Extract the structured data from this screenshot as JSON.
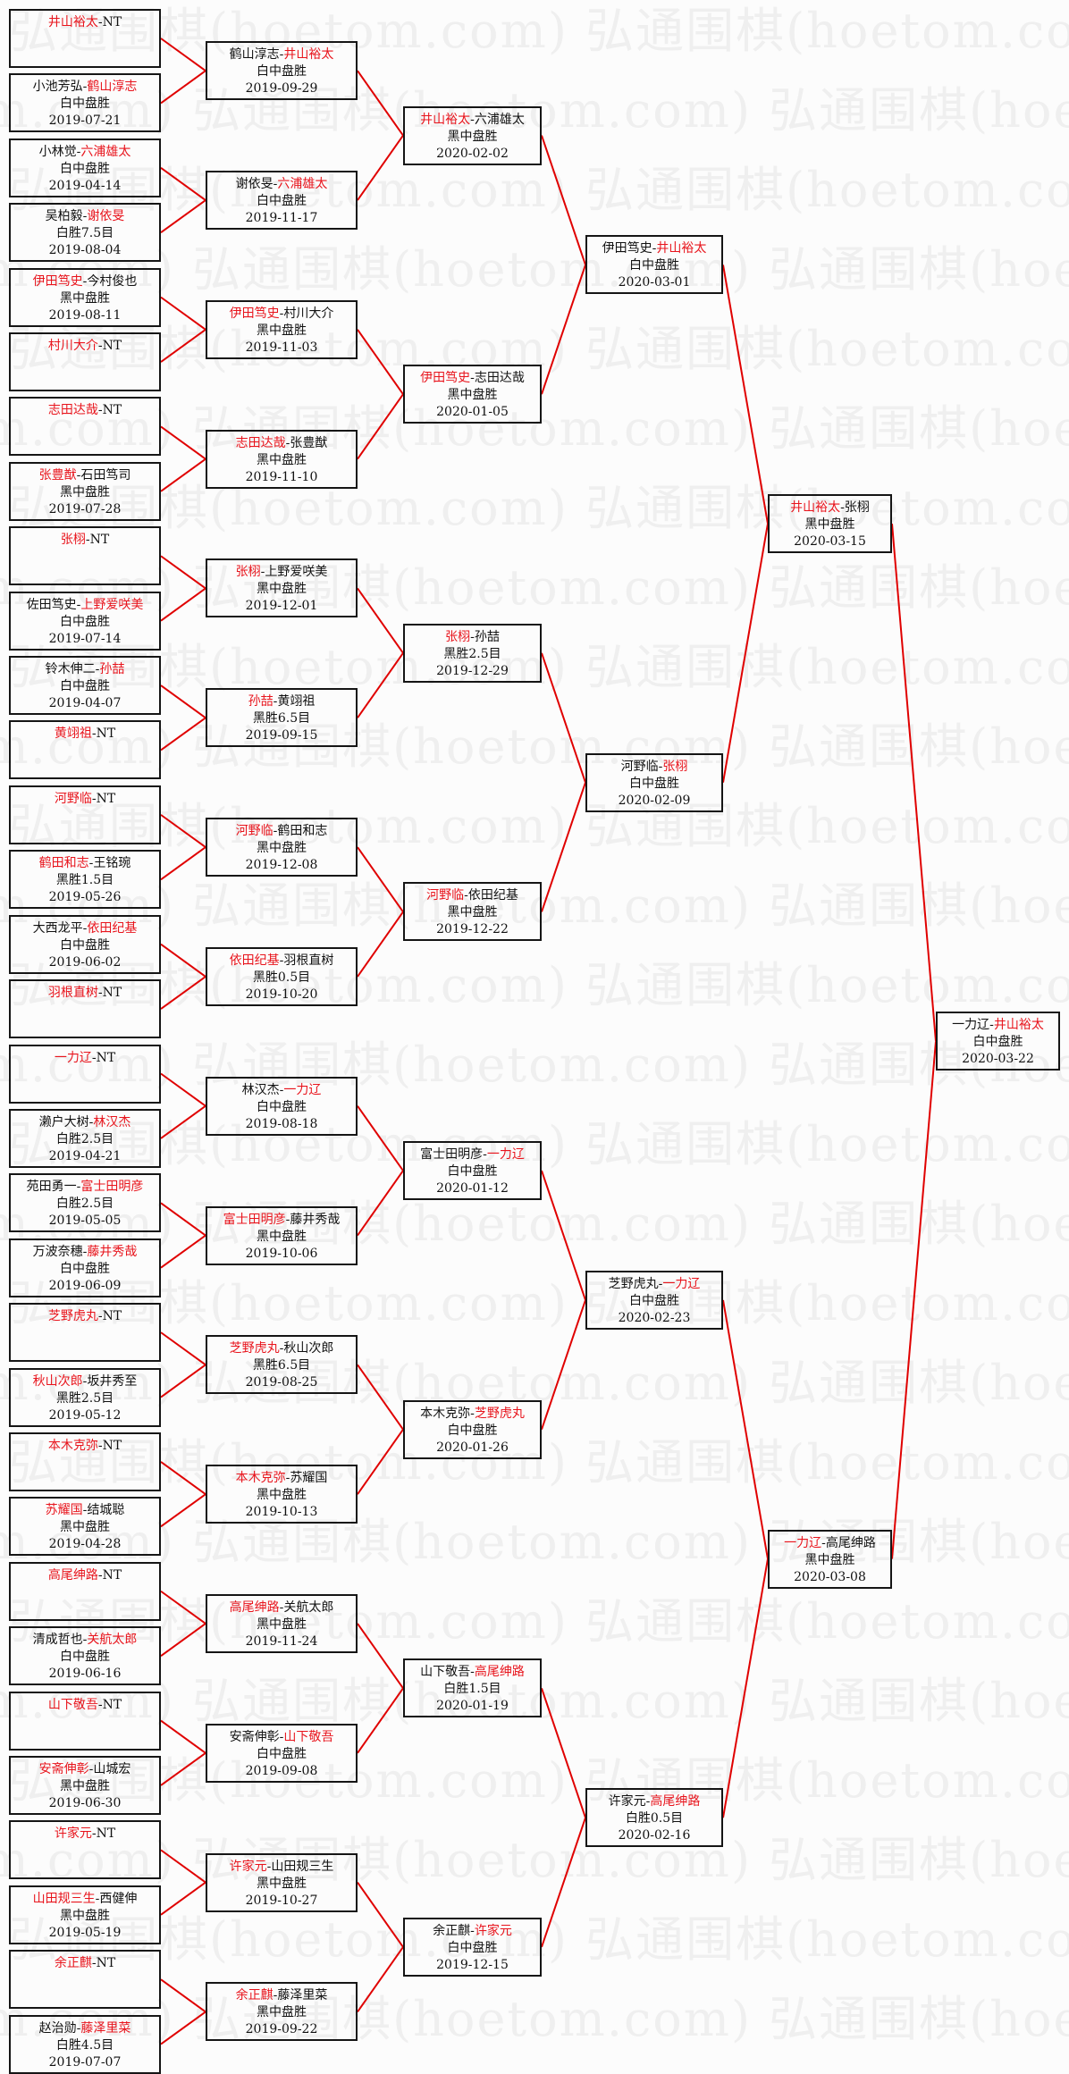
{
  "watermark": "弘通围棋(hoetom.com)",
  "colors": {
    "winner": "#e8141c",
    "connector": "#e00000",
    "border": "#151515"
  },
  "rounds": [
    [
      {
        "p1": "井山裕太",
        "p2": "NT",
        "winner": 0,
        "result": "",
        "date": ""
      },
      {
        "p1": "小池芳弘",
        "p2": "鹤山淳志",
        "winner": 1,
        "result": "白中盘胜",
        "date": "2019-07-21"
      },
      {
        "p1": "小林觉",
        "p2": "六浦雄太",
        "winner": 1,
        "result": "白中盘胜",
        "date": "2019-04-14"
      },
      {
        "p1": "吴柏毅",
        "p2": "谢依旻",
        "winner": 1,
        "result": "白胜7.5目",
        "date": "2019-08-04"
      },
      {
        "p1": "伊田笃史",
        "p2": "今村俊也",
        "winner": 0,
        "result": "黑中盘胜",
        "date": "2019-08-11"
      },
      {
        "p1": "村川大介",
        "p2": "NT",
        "winner": 0,
        "result": "",
        "date": ""
      },
      {
        "p1": "志田达哉",
        "p2": "NT",
        "winner": 0,
        "result": "",
        "date": ""
      },
      {
        "p1": "张豊猷",
        "p2": "石田笃司",
        "winner": 0,
        "result": "黑中盘胜",
        "date": "2019-07-28"
      },
      {
        "p1": "张栩",
        "p2": "NT",
        "winner": 0,
        "result": "",
        "date": ""
      },
      {
        "p1": "佐田笃史",
        "p2": "上野爱咲美",
        "winner": 1,
        "result": "白中盘胜",
        "date": "2019-07-14"
      },
      {
        "p1": "铃木伸二",
        "p2": "孙喆",
        "winner": 1,
        "result": "白中盘胜",
        "date": "2019-04-07"
      },
      {
        "p1": "黄翊祖",
        "p2": "NT",
        "winner": 0,
        "result": "",
        "date": ""
      },
      {
        "p1": "河野临",
        "p2": "NT",
        "winner": 0,
        "result": "",
        "date": ""
      },
      {
        "p1": "鹤田和志",
        "p2": "王铭琬",
        "winner": 0,
        "result": "黑胜1.5目",
        "date": "2019-05-26"
      },
      {
        "p1": "大西龙平",
        "p2": "依田纪基",
        "winner": 1,
        "result": "白中盘胜",
        "date": "2019-06-02"
      },
      {
        "p1": "羽根直树",
        "p2": "NT",
        "winner": 0,
        "result": "",
        "date": ""
      },
      {
        "p1": "一力辽",
        "p2": "NT",
        "winner": 0,
        "result": "",
        "date": ""
      },
      {
        "p1": "濑户大树",
        "p2": "林汉杰",
        "winner": 1,
        "result": "白胜2.5目",
        "date": "2019-04-21"
      },
      {
        "p1": "苑田勇一",
        "p2": "富士田明彦",
        "winner": 1,
        "result": "白胜2.5目",
        "date": "2019-05-05"
      },
      {
        "p1": "万波奈穗",
        "p2": "藤井秀哉",
        "winner": 1,
        "result": "白中盘胜",
        "date": "2019-06-09"
      },
      {
        "p1": "芝野虎丸",
        "p2": "NT",
        "winner": 0,
        "result": "",
        "date": ""
      },
      {
        "p1": "秋山次郎",
        "p2": "坂井秀至",
        "winner": 0,
        "result": "黑胜2.5目",
        "date": "2019-05-12"
      },
      {
        "p1": "本木克弥",
        "p2": "NT",
        "winner": 0,
        "result": "",
        "date": ""
      },
      {
        "p1": "苏耀国",
        "p2": "结城聪",
        "winner": 0,
        "result": "黑中盘胜",
        "date": "2019-04-28"
      },
      {
        "p1": "高尾绅路",
        "p2": "NT",
        "winner": 0,
        "result": "",
        "date": ""
      },
      {
        "p1": "清成哲也",
        "p2": "关航太郎",
        "winner": 1,
        "result": "白中盘胜",
        "date": "2019-06-16"
      },
      {
        "p1": "山下敬吾",
        "p2": "NT",
        "winner": 0,
        "result": "",
        "date": ""
      },
      {
        "p1": "安斋伸彰",
        "p2": "山城宏",
        "winner": 0,
        "result": "黑中盘胜",
        "date": "2019-06-30"
      },
      {
        "p1": "许家元",
        "p2": "NT",
        "winner": 0,
        "result": "",
        "date": ""
      },
      {
        "p1": "山田规三生",
        "p2": "西健伸",
        "winner": 0,
        "result": "黑中盘胜",
        "date": "2019-05-19"
      },
      {
        "p1": "余正麒",
        "p2": "NT",
        "winner": 0,
        "result": "",
        "date": ""
      },
      {
        "p1": "赵治勋",
        "p2": "藤泽里菜",
        "winner": 1,
        "result": "白胜4.5目",
        "date": "2019-07-07"
      }
    ],
    [
      {
        "p1": "鹤山淳志",
        "p2": "井山裕太",
        "winner": 1,
        "result": "白中盘胜",
        "date": "2019-09-29"
      },
      {
        "p1": "谢依旻",
        "p2": "六浦雄太",
        "winner": 1,
        "result": "白中盘胜",
        "date": "2019-11-17"
      },
      {
        "p1": "伊田笃史",
        "p2": "村川大介",
        "winner": 0,
        "result": "黑中盘胜",
        "date": "2019-11-03"
      },
      {
        "p1": "志田达哉",
        "p2": "张豊猷",
        "winner": 0,
        "result": "黑中盘胜",
        "date": "2019-11-10"
      },
      {
        "p1": "张栩",
        "p2": "上野爱咲美",
        "winner": 0,
        "result": "黑中盘胜",
        "date": "2019-12-01"
      },
      {
        "p1": "孙喆",
        "p2": "黄翊祖",
        "winner": 0,
        "result": "黑胜6.5目",
        "date": "2019-09-15"
      },
      {
        "p1": "河野临",
        "p2": "鹤田和志",
        "winner": 0,
        "result": "黑中盘胜",
        "date": "2019-12-08"
      },
      {
        "p1": "依田纪基",
        "p2": "羽根直树",
        "winner": 0,
        "result": "黑胜0.5目",
        "date": "2019-10-20"
      },
      {
        "p1": "林汉杰",
        "p2": "一力辽",
        "winner": 1,
        "result": "白中盘胜",
        "date": "2019-08-18"
      },
      {
        "p1": "富士田明彦",
        "p2": "藤井秀哉",
        "winner": 0,
        "result": "黑中盘胜",
        "date": "2019-10-06"
      },
      {
        "p1": "芝野虎丸",
        "p2": "秋山次郎",
        "winner": 0,
        "result": "黑胜6.5目",
        "date": "2019-08-25"
      },
      {
        "p1": "本木克弥",
        "p2": "苏耀国",
        "winner": 0,
        "result": "黑中盘胜",
        "date": "2019-10-13"
      },
      {
        "p1": "高尾绅路",
        "p2": "关航太郎",
        "winner": 0,
        "result": "黑中盘胜",
        "date": "2019-11-24"
      },
      {
        "p1": "安斋伸彰",
        "p2": "山下敬吾",
        "winner": 1,
        "result": "白中盘胜",
        "date": "2019-09-08"
      },
      {
        "p1": "许家元",
        "p2": "山田规三生",
        "winner": 0,
        "result": "黑中盘胜",
        "date": "2019-10-27"
      },
      {
        "p1": "余正麒",
        "p2": "藤泽里菜",
        "winner": 0,
        "result": "黑中盘胜",
        "date": "2019-09-22"
      }
    ],
    [
      {
        "p1": "井山裕太",
        "p2": "六浦雄太",
        "winner": 0,
        "result": "黑中盘胜",
        "date": "2020-02-02"
      },
      {
        "p1": "伊田笃史",
        "p2": "志田达哉",
        "winner": 0,
        "result": "黑中盘胜",
        "date": "2020-01-05"
      },
      {
        "p1": "张栩",
        "p2": "孙喆",
        "winner": 0,
        "result": "黑胜2.5目",
        "date": "2019-12-29"
      },
      {
        "p1": "河野临",
        "p2": "依田纪基",
        "winner": 0,
        "result": "黑中盘胜",
        "date": "2019-12-22"
      },
      {
        "p1": "富士田明彦",
        "p2": "一力辽",
        "winner": 1,
        "result": "白中盘胜",
        "date": "2020-01-12"
      },
      {
        "p1": "本木克弥",
        "p2": "芝野虎丸",
        "winner": 1,
        "result": "白中盘胜",
        "date": "2020-01-26"
      },
      {
        "p1": "山下敬吾",
        "p2": "高尾绅路",
        "winner": 1,
        "result": "白胜1.5目",
        "date": "2020-01-19"
      },
      {
        "p1": "余正麒",
        "p2": "许家元",
        "winner": 1,
        "result": "白中盘胜",
        "date": "2019-12-15"
      }
    ],
    [
      {
        "p1": "伊田笃史",
        "p2": "井山裕太",
        "winner": 1,
        "result": "白中盘胜",
        "date": "2020-03-01"
      },
      {
        "p1": "河野临",
        "p2": "张栩",
        "winner": 1,
        "result": "白中盘胜",
        "date": "2020-02-09"
      },
      {
        "p1": "芝野虎丸",
        "p2": "一力辽",
        "winner": 1,
        "result": "白中盘胜",
        "date": "2020-02-23"
      },
      {
        "p1": "许家元",
        "p2": "高尾绅路",
        "winner": 1,
        "result": "白胜0.5目",
        "date": "2020-02-16"
      }
    ],
    [
      {
        "p1": "井山裕太",
        "p2": "张栩",
        "winner": 0,
        "result": "黑中盘胜",
        "date": "2020-03-15"
      },
      {
        "p1": "一力辽",
        "p2": "高尾绅路",
        "winner": 0,
        "result": "黑中盘胜",
        "date": "2020-03-08"
      }
    ],
    [
      {
        "p1": "一力辽",
        "p2": "井山裕太",
        "winner": 1,
        "result": "白中盘胜",
        "date": "2020-03-22"
      }
    ]
  ]
}
